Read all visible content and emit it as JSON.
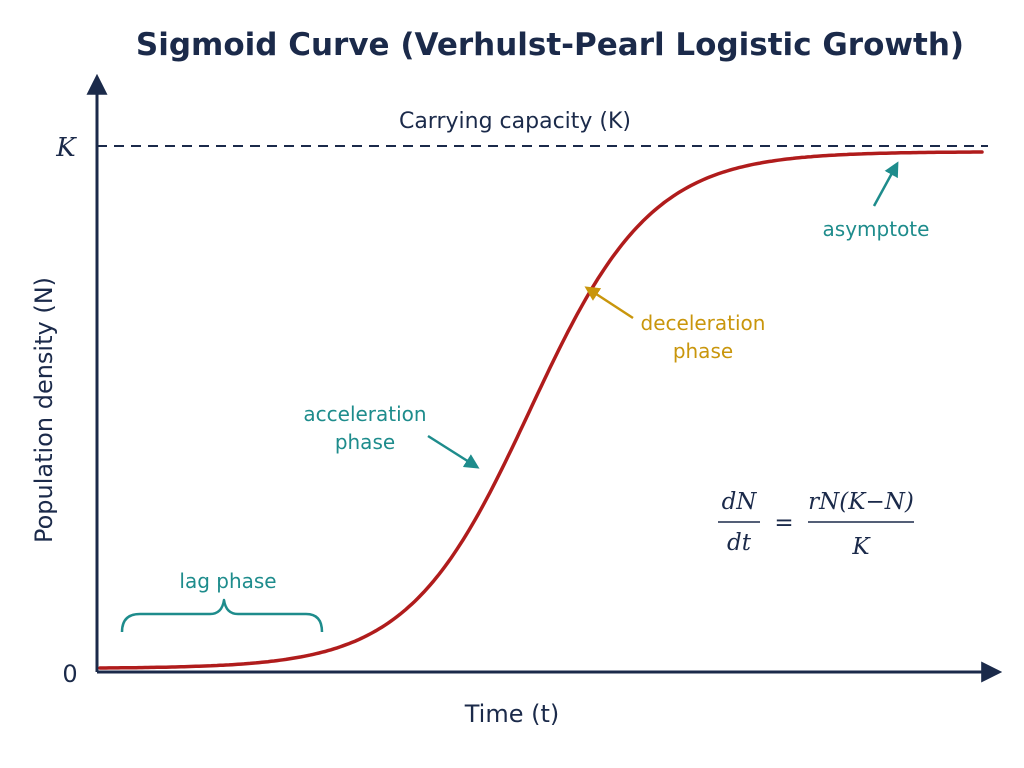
{
  "title": "Sigmoid Curve (Verhulst-Pearl Logistic Growth)",
  "y_axis": {
    "label": "Population density (N)",
    "top_tick": "K",
    "zero_tick": "0"
  },
  "x_axis": {
    "label": "Time (t)"
  },
  "carrying_capacity_label": "Carrying capacity (K)",
  "annotations": {
    "asymptote": "asymptote",
    "deceleration": [
      "deceleration",
      "phase"
    ],
    "acceleration": [
      "acceleration",
      "phase"
    ],
    "lag": "lag phase"
  },
  "equation": {
    "lhs_num": "dN",
    "lhs_den": "dt",
    "equals": "=",
    "rhs_num": "rN(K−N)",
    "rhs_den": "K"
  },
  "colors": {
    "axis": "#1b2a4a",
    "curve": "#b01c1c",
    "teal": "#1e8c8c",
    "gold": "#c9960c",
    "text": "#1b2a4a"
  }
}
